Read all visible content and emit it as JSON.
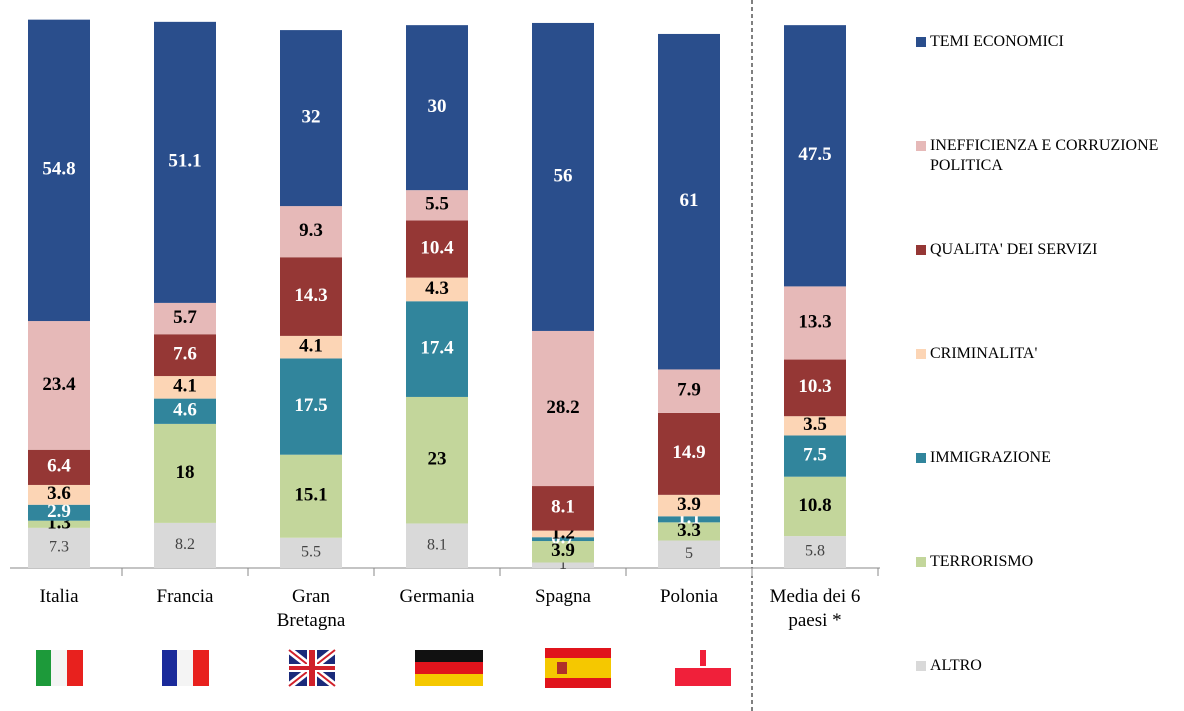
{
  "chart_data": {
    "type": "stacked_bar",
    "categories": [
      "Italia",
      "Francia",
      "Gran Bretagna",
      "Germania",
      "Spagna",
      "Polonia",
      "Media dei 6 paesi *"
    ],
    "ylim": [
      0,
      100
    ],
    "series": [
      {
        "name": "ALTRO",
        "color": "#d9d9d9",
        "values": [
          7.3,
          8.2,
          5.5,
          8.1,
          1.0,
          5.0,
          5.8
        ]
      },
      {
        "name": "TERRORISMO",
        "color": "#c3d69b",
        "values": [
          1.3,
          18.0,
          15.1,
          23.0,
          3.9,
          3.3,
          10.8
        ]
      },
      {
        "name": "IMMIGRAZIONE",
        "color": "#31859c",
        "values": [
          2.9,
          4.6,
          17.5,
          17.4,
          0.7,
          1.1,
          7.5
        ]
      },
      {
        "name": "CRIMINALITA'",
        "color": "#fcd5b5",
        "values": [
          3.6,
          4.1,
          4.1,
          4.3,
          1.2,
          3.9,
          3.5
        ]
      },
      {
        "name": "QUALITA' DEI SERVIZI",
        "color": "#953735",
        "values": [
          6.4,
          7.6,
          14.3,
          10.4,
          8.1,
          14.9,
          10.3
        ]
      },
      {
        "name": "INEFFICIENZA E CORRUZIONE POLITICA",
        "color": "#e6b9b8",
        "values": [
          23.4,
          5.7,
          9.3,
          5.5,
          28.2,
          7.9,
          13.3
        ]
      },
      {
        "name": "TEMI ECONOMICI",
        "color": "#2a4e8c",
        "values": [
          54.8,
          51.1,
          32.0,
          30.0,
          56.0,
          61.0,
          47.5
        ]
      }
    ],
    "value_labels_format": null
  }
}
